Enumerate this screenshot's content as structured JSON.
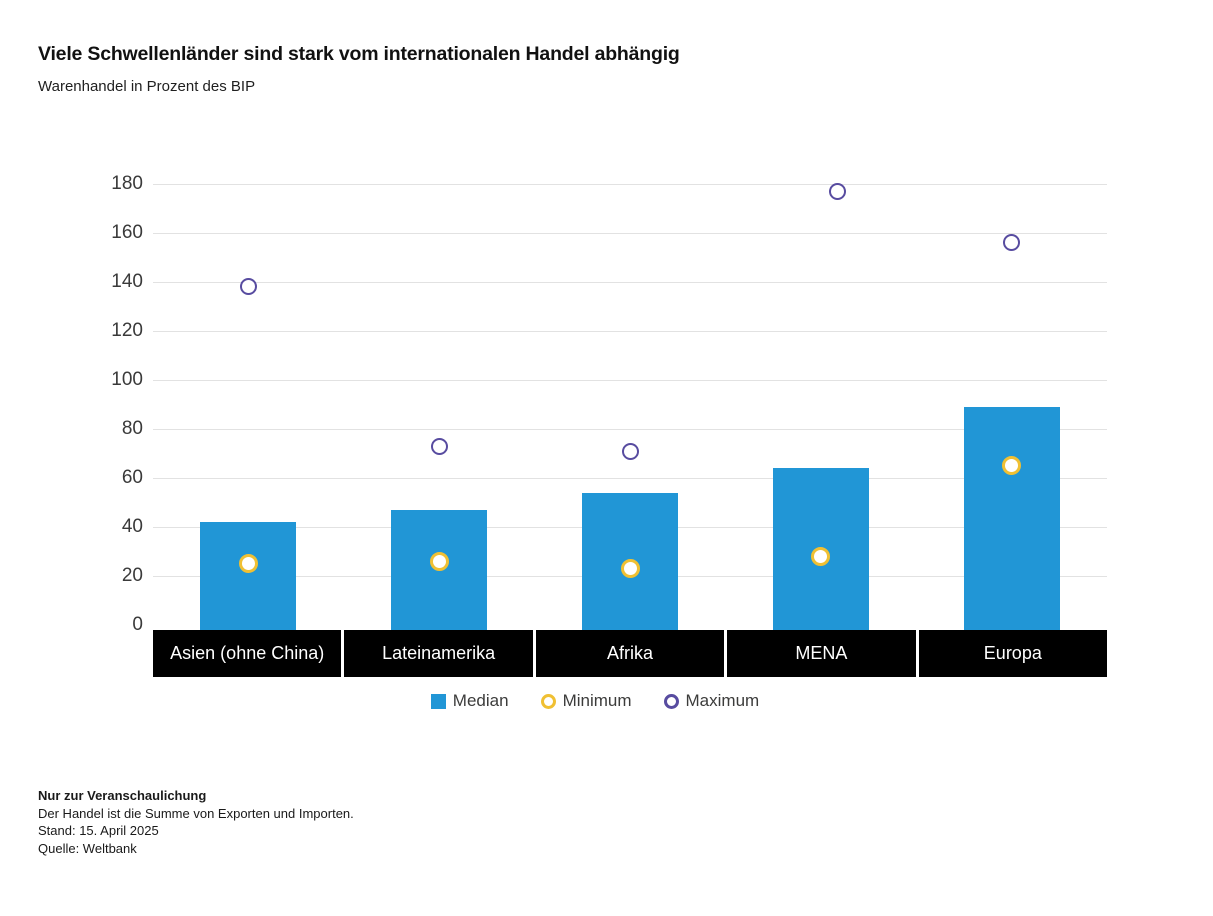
{
  "header": {
    "title": "Viele Schwellenländer sind stark vom internationalen Handel abhängig",
    "subtitle": "Warenhandel in Prozent des BIP"
  },
  "chart_data": {
    "type": "bar",
    "title": "Viele Schwellenländer sind stark vom internationalen Handel abhängig",
    "subtitle": "Warenhandel in Prozent des BIP",
    "categories": [
      "Asien (ohne China)",
      "Lateinamerika",
      "Afrika",
      "MENA",
      "Europa"
    ],
    "series": [
      {
        "name": "Median",
        "mark": "bar",
        "color": "#2196d6",
        "values": [
          42,
          47,
          54,
          64,
          89
        ]
      },
      {
        "name": "Minimum",
        "mark": "circle",
        "color": "#f0c033",
        "values": [
          25,
          26,
          23,
          28,
          65
        ]
      },
      {
        "name": "Maximum",
        "mark": "circle",
        "color": "#584ca0",
        "values": [
          138,
          73,
          71,
          177,
          156
        ]
      }
    ],
    "ylabel": "Warenhandel in Prozent des BIP",
    "ylim": [
      0,
      180
    ],
    "yticks": [
      0,
      20,
      40,
      60,
      80,
      100,
      120,
      140,
      160,
      180
    ],
    "grid": "horizontal",
    "legend_position": "bottom",
    "category_label_style": "white-on-black-band"
  },
  "legend": {
    "median": "Median",
    "minimum": "Minimum",
    "maximum": "Maximum"
  },
  "footer": {
    "disclaimer": "Nur zur Veranschaulichung",
    "note": "Der Handel ist die Summe von Exporten und Importen.",
    "as_of": "Stand: 15. April 2025",
    "source": "Quelle: Weltbank"
  },
  "colors": {
    "bar_median": "#2196d6",
    "minimum_ring": "#f0c033",
    "maximum_ring": "#584ca0",
    "category_band": "#000000",
    "gridline": "#e2e2e2",
    "text": "#1a1a1a"
  }
}
